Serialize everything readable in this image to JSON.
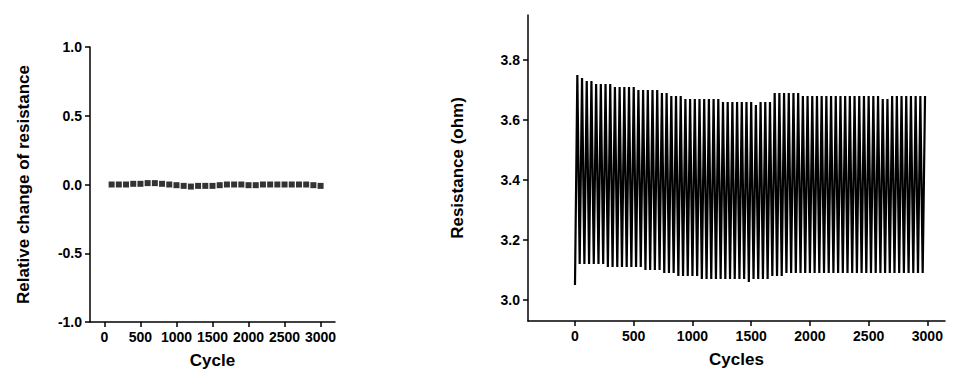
{
  "chart_data": [
    {
      "type": "scatter",
      "xlabel": "Cycle",
      "ylabel": "Relative change of resistance",
      "color": "#000000",
      "marker": "square",
      "x": [
        100,
        200,
        300,
        400,
        500,
        600,
        700,
        800,
        900,
        1000,
        1100,
        1200,
        1300,
        1400,
        1500,
        1600,
        1700,
        1800,
        1900,
        2000,
        2100,
        2200,
        2300,
        2400,
        2500,
        2600,
        2700,
        2800,
        2900,
        3000
      ],
      "values": [
        0,
        0,
        0,
        0.005,
        0.005,
        0.01,
        0.01,
        0.005,
        0,
        -0.005,
        -0.01,
        -0.015,
        -0.01,
        -0.01,
        -0.01,
        -0.005,
        0,
        0,
        0,
        -0.005,
        -0.005,
        0,
        0,
        0,
        0,
        0,
        0,
        0,
        -0.005,
        -0.01
      ],
      "xlim": [
        -200,
        3200
      ],
      "ylim": [
        -1.0,
        1.0
      ],
      "xticks": [
        0,
        500,
        1000,
        1500,
        2000,
        2500,
        3000
      ],
      "yticks": [
        {
          "value": -1.0,
          "label": "-1.0"
        },
        {
          "value": -0.5,
          "label": "-0.5"
        },
        {
          "value": 0,
          "label": "0.0"
        },
        {
          "value": 0.5,
          "label": "0.5"
        },
        {
          "value": 1.0,
          "label": "1.0"
        }
      ]
    },
    {
      "type": "line",
      "xlabel": "Cycles",
      "ylabel": "Resistance (ohm)",
      "color": "#000000",
      "x": [
        0,
        20,
        40,
        60,
        80,
        100,
        120,
        140,
        160,
        180,
        200,
        220,
        240,
        260,
        280,
        300,
        320,
        340,
        360,
        380,
        400,
        420,
        440,
        460,
        480,
        500,
        520,
        540,
        560,
        580,
        600,
        620,
        640,
        660,
        680,
        700,
        720,
        740,
        760,
        780,
        800,
        820,
        840,
        860,
        880,
        900,
        920,
        940,
        960,
        980,
        1000,
        1020,
        1040,
        1060,
        1080,
        1100,
        1120,
        1140,
        1160,
        1180,
        1200,
        1220,
        1240,
        1260,
        1280,
        1300,
        1320,
        1340,
        1360,
        1380,
        1400,
        1420,
        1440,
        1460,
        1480,
        1500,
        1520,
        1540,
        1560,
        1580,
        1600,
        1620,
        1640,
        1660,
        1680,
        1700,
        1720,
        1740,
        1760,
        1780,
        1800,
        1820,
        1840,
        1860,
        1880,
        1900,
        1920,
        1940,
        1960,
        1980,
        2000,
        2020,
        2040,
        2060,
        2080,
        2100,
        2120,
        2140,
        2160,
        2180,
        2200,
        2220,
        2240,
        2260,
        2280,
        2300,
        2320,
        2340,
        2360,
        2380,
        2400,
        2420,
        2440,
        2460,
        2480,
        2500,
        2520,
        2540,
        2560,
        2580,
        2600,
        2620,
        2640,
        2660,
        2680,
        2700,
        2720,
        2740,
        2760,
        2780,
        2800,
        2820,
        2840,
        2860,
        2880,
        2900,
        2920,
        2940,
        2960,
        2980
      ],
      "values": [
        3.05,
        3.75,
        3.12,
        3.74,
        3.12,
        3.73,
        3.12,
        3.73,
        3.12,
        3.72,
        3.12,
        3.72,
        3.12,
        3.72,
        3.11,
        3.72,
        3.11,
        3.71,
        3.11,
        3.71,
        3.11,
        3.71,
        3.11,
        3.71,
        3.11,
        3.71,
        3.11,
        3.7,
        3.11,
        3.7,
        3.1,
        3.7,
        3.1,
        3.7,
        3.1,
        3.7,
        3.1,
        3.69,
        3.09,
        3.69,
        3.09,
        3.68,
        3.09,
        3.68,
        3.08,
        3.68,
        3.08,
        3.67,
        3.08,
        3.67,
        3.08,
        3.67,
        3.08,
        3.67,
        3.07,
        3.67,
        3.07,
        3.67,
        3.07,
        3.67,
        3.07,
        3.67,
        3.07,
        3.66,
        3.07,
        3.66,
        3.07,
        3.66,
        3.07,
        3.66,
        3.07,
        3.66,
        3.07,
        3.66,
        3.06,
        3.66,
        3.07,
        3.65,
        3.07,
        3.66,
        3.07,
        3.66,
        3.07,
        3.66,
        3.08,
        3.69,
        3.08,
        3.69,
        3.08,
        3.69,
        3.09,
        3.69,
        3.09,
        3.69,
        3.09,
        3.69,
        3.09,
        3.68,
        3.09,
        3.68,
        3.09,
        3.68,
        3.09,
        3.68,
        3.09,
        3.68,
        3.09,
        3.68,
        3.09,
        3.68,
        3.09,
        3.68,
        3.09,
        3.68,
        3.09,
        3.68,
        3.09,
        3.68,
        3.09,
        3.68,
        3.09,
        3.68,
        3.09,
        3.68,
        3.09,
        3.68,
        3.09,
        3.68,
        3.09,
        3.68,
        3.09,
        3.67,
        3.09,
        3.67,
        3.09,
        3.68,
        3.09,
        3.68,
        3.09,
        3.68,
        3.09,
        3.68,
        3.09,
        3.68,
        3.09,
        3.68,
        3.09,
        3.68,
        3.09,
        3.68
      ],
      "xlim": [
        -400,
        3150
      ],
      "ylim": [
        2.93,
        3.95
      ],
      "xticks": [
        0,
        500,
        1000,
        1500,
        2000,
        2500,
        3000
      ],
      "yticks": [
        {
          "value": 3.0,
          "label": "3.0"
        },
        {
          "value": 3.2,
          "label": "3.2"
        },
        {
          "value": 3.4,
          "label": "3.4"
        },
        {
          "value": 3.6,
          "label": "3.6"
        },
        {
          "value": 3.8,
          "label": "3.8"
        }
      ]
    }
  ]
}
